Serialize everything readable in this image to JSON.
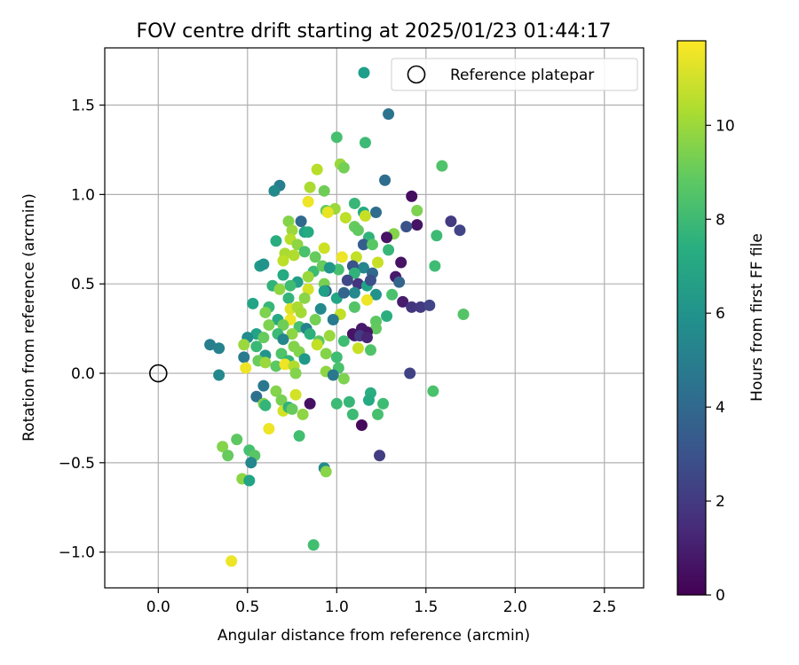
{
  "chart_data": {
    "type": "scatter",
    "title": "FOV centre drift starting at 2025/01/23 01:44:17",
    "xlabel": "Angular distance from reference (arcmin)",
    "ylabel": "Rotation from reference (arcmin)",
    "xlim": [
      -0.3,
      2.72
    ],
    "ylim": [
      -1.2,
      1.82
    ],
    "xticks": [
      0.0,
      0.5,
      1.0,
      1.5,
      2.0,
      2.5
    ],
    "xtick_labels": [
      "0.0",
      "0.5",
      "1.0",
      "1.5",
      "2.0",
      "2.5"
    ],
    "yticks": [
      -1.0,
      -0.5,
      0.0,
      0.5,
      1.0,
      1.5
    ],
    "ytick_labels": [
      "−1.0",
      "−0.5",
      "0.0",
      "0.5",
      "1.0",
      "1.5"
    ],
    "grid": true,
    "colormap": "viridis",
    "colorbar": {
      "label": "Hours from first FF file",
      "range": [
        0,
        11.8
      ],
      "ticks": [
        0,
        2,
        4,
        6,
        8,
        10
      ],
      "tick_labels": [
        "0",
        "2",
        "4",
        "6",
        "8",
        "10"
      ]
    },
    "legend": {
      "placement": "top-right",
      "entries": [
        {
          "label": "",
          "marker": "filled-circle",
          "color": "#1f9e89"
        },
        {
          "label": "Reference platepar",
          "marker": "open-circle",
          "color": "#000000"
        }
      ]
    },
    "reference_point": {
      "x": 0.0,
      "y": 0.0
    },
    "series": [
      {
        "points": [
          [
            1.29,
            1.45,
            4.5
          ],
          [
            1.0,
            1.32,
            8.3
          ],
          [
            1.16,
            1.29,
            8.0
          ],
          [
            1.02,
            1.17,
            10.0
          ],
          [
            1.04,
            1.15,
            9.3
          ],
          [
            1.59,
            1.16,
            8.5
          ],
          [
            0.89,
            1.14,
            10.5
          ],
          [
            0.68,
            1.05,
            5.0
          ],
          [
            0.65,
            1.02,
            5.5
          ],
          [
            0.85,
            1.04,
            10.3
          ],
          [
            0.93,
            1.02,
            9.2
          ],
          [
            1.27,
            1.08,
            4.2
          ],
          [
            0.84,
            0.96,
            11.5
          ],
          [
            1.42,
            0.99,
            0.4
          ],
          [
            1.1,
            0.95,
            7.8
          ],
          [
            1.45,
            0.91,
            9.5
          ],
          [
            0.99,
            0.92,
            10.0
          ],
          [
            0.94,
            0.91,
            9.0
          ],
          [
            0.95,
            0.9,
            11.4
          ],
          [
            1.15,
            0.9,
            7.2
          ],
          [
            1.22,
            0.9,
            4.2
          ],
          [
            1.16,
            0.88,
            10.8
          ],
          [
            1.05,
            0.87,
            10.6
          ],
          [
            0.73,
            0.85,
            9.6
          ],
          [
            0.8,
            0.85,
            4.0
          ],
          [
            1.64,
            0.85,
            2.0
          ],
          [
            1.45,
            0.83,
            0.6
          ],
          [
            1.1,
            0.82,
            9.0
          ],
          [
            1.12,
            0.8,
            8.9
          ],
          [
            0.75,
            0.8,
            10.0
          ],
          [
            0.82,
            0.79,
            6.8
          ],
          [
            0.84,
            0.79,
            7.2
          ],
          [
            1.69,
            0.8,
            2.4
          ],
          [
            1.39,
            0.82,
            3.0
          ],
          [
            1.32,
            0.78,
            9.6
          ],
          [
            0.74,
            0.75,
            10.5
          ],
          [
            1.28,
            0.76,
            0.6
          ],
          [
            1.18,
            0.76,
            7.6
          ],
          [
            0.66,
            0.74,
            7.3
          ],
          [
            1.56,
            0.77,
            8.0
          ],
          [
            0.78,
            0.72,
            9.8
          ],
          [
            0.93,
            0.7,
            10.9
          ],
          [
            1.15,
            0.72,
            3.5
          ],
          [
            1.2,
            0.72,
            8.7
          ],
          [
            0.82,
            0.68,
            8.4
          ],
          [
            1.29,
            0.69,
            7.8
          ],
          [
            0.71,
            0.67,
            10.3
          ],
          [
            0.76,
            0.66,
            10.4
          ],
          [
            0.7,
            0.63,
            10.6
          ],
          [
            0.88,
            0.65,
            9.0
          ],
          [
            1.03,
            0.65,
            11.5
          ],
          [
            1.11,
            0.65,
            10.7
          ],
          [
            0.57,
            0.6,
            6.4
          ],
          [
            0.59,
            0.61,
            6.0
          ],
          [
            1.23,
            0.62,
            10.8
          ],
          [
            1.36,
            0.62,
            0.6
          ],
          [
            0.87,
            0.57,
            8.0
          ],
          [
            1.01,
            0.58,
            8.3
          ],
          [
            1.15,
            0.59,
            5.4
          ],
          [
            0.92,
            0.6,
            9.0
          ],
          [
            0.96,
            0.59,
            6.2
          ],
          [
            1.09,
            0.6,
            3.0
          ],
          [
            1.55,
            0.6,
            8.1
          ],
          [
            0.7,
            0.55,
            7.2
          ],
          [
            0.78,
            0.51,
            6.6
          ],
          [
            0.84,
            0.54,
            10.0
          ],
          [
            1.1,
            0.56,
            7.6
          ],
          [
            1.2,
            0.56,
            4.0
          ],
          [
            1.33,
            0.54,
            0.8
          ],
          [
            0.93,
            0.5,
            9.4
          ],
          [
            1.06,
            0.52,
            2.6
          ],
          [
            1.12,
            0.5,
            1.8
          ],
          [
            0.64,
            0.49,
            7.6
          ],
          [
            0.74,
            0.49,
            8.1
          ],
          [
            1.17,
            0.49,
            6.8
          ],
          [
            1.35,
            0.51,
            3.8
          ],
          [
            0.68,
            0.47,
            9.8
          ],
          [
            0.84,
            0.47,
            11.0
          ],
          [
            0.94,
            0.46,
            3.4
          ],
          [
            1.1,
            0.45,
            5.5
          ],
          [
            1.22,
            0.44,
            6.0
          ],
          [
            1.31,
            0.44,
            8.4
          ],
          [
            0.73,
            0.42,
            7.7
          ],
          [
            0.82,
            0.42,
            9.7
          ],
          [
            1.0,
            0.42,
            7.0
          ],
          [
            1.17,
            0.41,
            11.5
          ],
          [
            1.37,
            0.4,
            0.9
          ],
          [
            0.53,
            0.39,
            6.9
          ],
          [
            0.62,
            0.37,
            7.8
          ],
          [
            0.74,
            0.36,
            11.2
          ],
          [
            0.78,
            0.37,
            10.3
          ],
          [
            0.91,
            0.36,
            5.5
          ],
          [
            1.1,
            0.37,
            8.6
          ],
          [
            1.42,
            0.37,
            1.8
          ],
          [
            1.47,
            0.37,
            2.0
          ],
          [
            1.52,
            0.38,
            2.4
          ],
          [
            1.71,
            0.33,
            8.6
          ],
          [
            0.6,
            0.34,
            9.5
          ],
          [
            0.8,
            0.34,
            10.2
          ],
          [
            1.02,
            0.33,
            10.7
          ],
          [
            1.28,
            0.32,
            7.4
          ],
          [
            0.67,
            0.3,
            7.2
          ],
          [
            0.74,
            0.3,
            11.5
          ],
          [
            0.88,
            0.3,
            9.3
          ],
          [
            0.98,
            0.3,
            4.8
          ],
          [
            1.22,
            0.29,
            8.8
          ],
          [
            0.62,
            0.27,
            9.5
          ],
          [
            0.7,
            0.27,
            9.2
          ],
          [
            0.79,
            0.26,
            8.4
          ],
          [
            0.83,
            0.25,
            5.2
          ],
          [
            1.14,
            0.25,
            0.8
          ],
          [
            1.22,
            0.25,
            8.9
          ],
          [
            0.55,
            0.22,
            6.8
          ],
          [
            0.67,
            0.22,
            8.0
          ],
          [
            0.75,
            0.22,
            9.8
          ],
          [
            0.85,
            0.22,
            7.5
          ],
          [
            0.96,
            0.21,
            10.0
          ],
          [
            1.1,
            0.21,
            1.5
          ],
          [
            1.17,
            0.23,
            0.7
          ],
          [
            0.5,
            0.2,
            5.6
          ],
          [
            0.59,
            0.2,
            9.0
          ],
          [
            0.7,
            0.19,
            5.4
          ],
          [
            0.9,
            0.18,
            8.8
          ],
          [
            1.04,
            0.18,
            8.1
          ],
          [
            0.48,
            0.16,
            10.0
          ],
          [
            0.55,
            0.15,
            7.9
          ],
          [
            0.76,
            0.15,
            9.6
          ],
          [
            0.89,
            0.16,
            10.7
          ],
          [
            1.12,
            0.14,
            10.8
          ],
          [
            1.19,
            0.13,
            8.5
          ],
          [
            0.29,
            0.16,
            5.0
          ],
          [
            0.34,
            0.14,
            5.2
          ],
          [
            0.6,
            0.1,
            6.1
          ],
          [
            0.69,
            0.11,
            8.5
          ],
          [
            0.79,
            0.12,
            9.6
          ],
          [
            0.94,
            0.11,
            9.6
          ],
          [
            0.48,
            0.09,
            4.8
          ],
          [
            0.56,
            0.07,
            9.1
          ],
          [
            0.73,
            0.07,
            7.7
          ],
          [
            0.82,
            0.08,
            6.3
          ],
          [
            1.0,
            0.09,
            8.1
          ],
          [
            0.6,
            0.06,
            10.0
          ],
          [
            0.66,
            0.04,
            8.8
          ],
          [
            0.71,
            0.05,
            11.5
          ],
          [
            0.76,
            0.04,
            10.4
          ],
          [
            0.49,
            0.03,
            11.5
          ],
          [
            1.01,
            0.03,
            8.4
          ],
          [
            0.94,
            0.01,
            9.8
          ],
          [
            1.41,
            0.0,
            2.3
          ],
          [
            0.77,
            0.0,
            9.6
          ],
          [
            0.34,
            -0.01,
            5.5
          ],
          [
            0.59,
            -0.07,
            4.7
          ],
          [
            0.98,
            -0.01,
            4.7
          ],
          [
            1.04,
            -0.03,
            9.5
          ],
          [
            1.19,
            -0.11,
            7.4
          ],
          [
            0.66,
            -0.1,
            9.6
          ],
          [
            0.77,
            -0.12,
            11.0
          ],
          [
            1.54,
            -0.1,
            8.4
          ],
          [
            0.55,
            -0.13,
            4.4
          ],
          [
            0.69,
            -0.15,
            9.4
          ],
          [
            0.59,
            -0.17,
            9.5
          ],
          [
            0.6,
            -0.18,
            7.7
          ],
          [
            0.85,
            -0.17,
            0.5
          ],
          [
            1.0,
            -0.17,
            8.0
          ],
          [
            1.07,
            -0.16,
            7.8
          ],
          [
            1.18,
            -0.15,
            7.2
          ],
          [
            1.26,
            -0.17,
            8.1
          ],
          [
            0.7,
            -0.21,
            11.0
          ],
          [
            0.73,
            -0.19,
            7.6
          ],
          [
            0.75,
            -0.2,
            9.0
          ],
          [
            0.81,
            -0.23,
            9.8
          ],
          [
            1.09,
            -0.23,
            8.0
          ],
          [
            1.23,
            -0.23,
            8.3
          ],
          [
            1.14,
            -0.29,
            0.3
          ],
          [
            0.62,
            -0.31,
            11.5
          ],
          [
            0.79,
            -0.35,
            8.2
          ],
          [
            0.44,
            -0.37,
            8.8
          ],
          [
            0.36,
            -0.41,
            9.6
          ],
          [
            0.51,
            -0.43,
            8.3
          ],
          [
            0.54,
            -0.46,
            8.7
          ],
          [
            0.39,
            -0.46,
            9.0
          ],
          [
            1.24,
            -0.46,
            2.1
          ],
          [
            0.52,
            -0.5,
            5.4
          ],
          [
            0.93,
            -0.53,
            5.6
          ],
          [
            0.94,
            -0.55,
            9.7
          ],
          [
            0.47,
            -0.59,
            9.8
          ],
          [
            0.51,
            -0.6,
            6.9
          ],
          [
            0.87,
            -0.96,
            8.2
          ],
          [
            0.41,
            -1.05,
            11.5
          ],
          [
            1.09,
            0.22,
            0.6
          ],
          [
            1.13,
            0.21,
            2.0
          ],
          [
            1.17,
            0.2,
            1.2
          ],
          [
            0.93,
            0.46,
            6.6
          ],
          [
            1.04,
            0.45,
            3.8
          ],
          [
            1.19,
            0.52,
            2.9
          ]
        ]
      }
    ]
  }
}
